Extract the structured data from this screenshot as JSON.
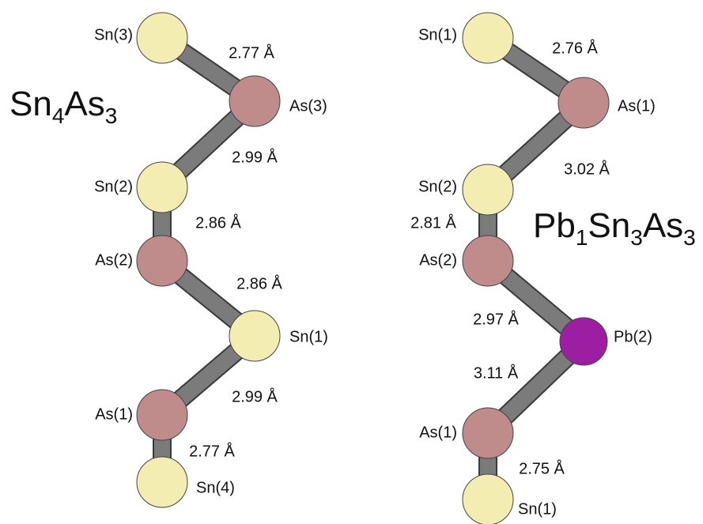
{
  "molecules": [
    {
      "formula": [
        {
          "text": "Sn",
          "sub": "4"
        },
        {
          "text": "As",
          "sub": "3"
        }
      ],
      "atoms": [
        "Sn(3)",
        "As(3)",
        "Sn(2)",
        "As(2)",
        "Sn(1)",
        "As(1)",
        "Sn(4)"
      ],
      "bonds": [
        "2.77 Å",
        "2.99 Å",
        "2.86 Å",
        "2.86 Å",
        "2.99 Å",
        "2.77 Å"
      ]
    },
    {
      "formula": [
        {
          "text": "Pb",
          "sub": "1"
        },
        {
          "text": "Sn",
          "sub": "3"
        },
        {
          "text": "As",
          "sub": "3"
        }
      ],
      "atoms": [
        "Sn(1)",
        "As(1)",
        "Sn(2)",
        "As(2)",
        "Pb(2)",
        "As(1)",
        "Sn(1)"
      ],
      "bonds": [
        "2.76 Å",
        "3.02 Å",
        "2.81 Å",
        "2.97 Å",
        "3.11 Å",
        "2.75 Å"
      ]
    }
  ]
}
